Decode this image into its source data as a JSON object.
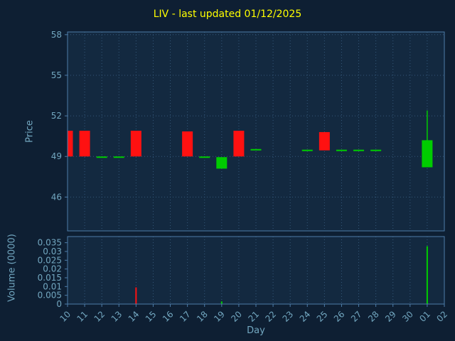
{
  "chart_data": {
    "type": "candlestick",
    "title": "LIV - last updated 01/12/2025",
    "xlabel": "Day",
    "ylabel_price": "Price",
    "ylabel_volume": "Volume (0000)",
    "x_ticklabels": [
      "10",
      "11",
      "12",
      "13",
      "14",
      "15",
      "16",
      "17",
      "18",
      "19",
      "20",
      "21",
      "22",
      "23",
      "24",
      "25",
      "26",
      "27",
      "28",
      "29",
      "30",
      "01",
      "02"
    ],
    "price_ticks": [
      46,
      49,
      52,
      55,
      58
    ],
    "price_range": [
      43.5,
      58.2
    ],
    "volume_ticks": [
      0,
      0.005,
      0.01,
      0.015,
      0.02,
      0.025,
      0.03,
      0.035
    ],
    "volume_range": [
      0,
      0.0385
    ],
    "grid": "dotted",
    "legend": "none",
    "candles": [
      {
        "day": "10",
        "open": 50.9,
        "high": 50.9,
        "low": 49.0,
        "close": 49.0,
        "volume": 0
      },
      {
        "day": "11",
        "open": 50.9,
        "high": 50.9,
        "low": 49.0,
        "close": 49.0,
        "volume": 0
      },
      {
        "day": "12",
        "open": 49.0,
        "high": 49.0,
        "low": 49.0,
        "close": 49.0,
        "volume": 0
      },
      {
        "day": "13",
        "open": 49.0,
        "high": 49.0,
        "low": 49.0,
        "close": 49.0,
        "volume": 0
      },
      {
        "day": "14",
        "open": 50.9,
        "high": 50.9,
        "low": 49.0,
        "close": 49.0,
        "volume": 0.0095
      },
      {
        "day": "15",
        "open": null,
        "high": null,
        "low": null,
        "close": null,
        "volume": 0
      },
      {
        "day": "16",
        "open": null,
        "high": null,
        "low": null,
        "close": null,
        "volume": 0
      },
      {
        "day": "17",
        "open": 50.85,
        "high": 50.85,
        "low": 49.0,
        "close": 49.0,
        "volume": 0
      },
      {
        "day": "18",
        "open": 49.0,
        "high": 49.0,
        "low": 49.0,
        "close": 49.0,
        "volume": 0
      },
      {
        "day": "19",
        "open": 48.1,
        "high": 48.95,
        "low": 48.1,
        "close": 48.95,
        "volume": 0.0015
      },
      {
        "day": "20",
        "open": 50.9,
        "high": 50.9,
        "low": 49.0,
        "close": 49.0,
        "volume": 0
      },
      {
        "day": "21",
        "open": 49.55,
        "high": 49.55,
        "low": 49.55,
        "close": 49.55,
        "volume": 0
      },
      {
        "day": "22",
        "open": null,
        "high": null,
        "low": null,
        "close": null,
        "volume": 0
      },
      {
        "day": "23",
        "open": null,
        "high": null,
        "low": null,
        "close": null,
        "volume": 0
      },
      {
        "day": "24",
        "open": 49.5,
        "high": 49.5,
        "low": 49.5,
        "close": 49.5,
        "volume": 0
      },
      {
        "day": "25",
        "open": 50.8,
        "high": 50.8,
        "low": 49.45,
        "close": 49.45,
        "volume": 0
      },
      {
        "day": "26",
        "open": 49.5,
        "high": 49.5,
        "low": 49.5,
        "close": 49.5,
        "volume": 0
      },
      {
        "day": "27",
        "open": 49.5,
        "high": 49.5,
        "low": 49.5,
        "close": 49.5,
        "volume": 0
      },
      {
        "day": "28",
        "open": 49.5,
        "high": 49.5,
        "low": 49.5,
        "close": 49.5,
        "volume": 0
      },
      {
        "day": "29",
        "open": null,
        "high": null,
        "low": null,
        "close": null,
        "volume": 0
      },
      {
        "day": "30",
        "open": null,
        "high": null,
        "low": null,
        "close": null,
        "volume": 0
      },
      {
        "day": "01",
        "open": 48.2,
        "high": 52.4,
        "low": 48.2,
        "close": 50.2,
        "volume": 0.033
      },
      {
        "day": "02",
        "open": null,
        "high": null,
        "low": null,
        "close": null,
        "volume": 0
      }
    ],
    "colors": {
      "figure_bg": "#0e1f33",
      "axes_bg": "#132940",
      "grid": "#35587a",
      "spine": "#4d7ca8",
      "tick_text": "#72a7c0",
      "title": "#ffff00",
      "up": "#00cc00",
      "down": "#ff1111"
    }
  }
}
